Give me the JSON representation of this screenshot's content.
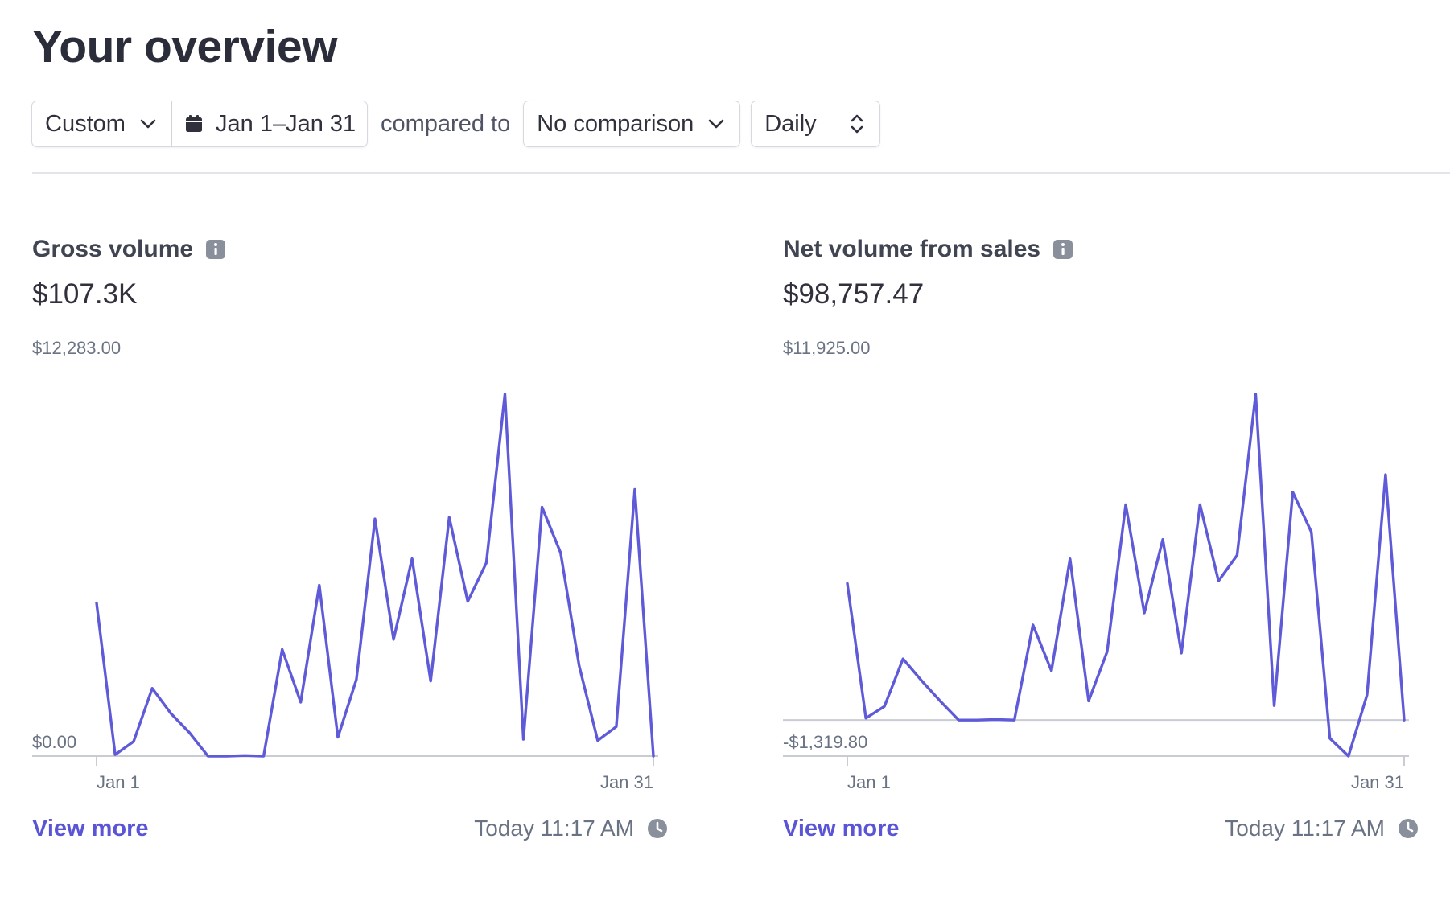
{
  "page": {
    "title": "Your overview"
  },
  "filters": {
    "range_preset": "Custom",
    "date_range": "Jan 1–Jan 31",
    "compared_to_label": "compared to",
    "comparison": "No comparison",
    "interval": "Daily"
  },
  "icons": {
    "range_chevron": "chevron-down-icon",
    "date": "calendar-icon",
    "comparison_chevron": "chevron-down-icon",
    "interval_stepper": "up-down-chevron-icon",
    "info": "info-icon",
    "timestamp": "clock-icon"
  },
  "colors": {
    "accent": "#635bff",
    "line": "#5e5ad8",
    "link": "#5a55d6",
    "axis": "#c9ccd3",
    "muted_text": "#6a7383"
  },
  "cards": [
    {
      "title": "Gross volume",
      "value": "$107.3K",
      "link_label": "View more",
      "updated": "Today 11:17 AM"
    },
    {
      "title": "Net volume from sales",
      "value": "$98,757.47",
      "link_label": "View more",
      "updated": "Today 11:17 AM"
    }
  ],
  "chart_data": [
    {
      "type": "line",
      "y_top_label": "$12,283.00",
      "y_bottom_label": "$0.00",
      "x_start_label": "Jan 1",
      "x_end_label": "Jan 31",
      "ylim": [
        0,
        12283
      ],
      "zero_line": false,
      "x": [
        1,
        2,
        3,
        4,
        5,
        6,
        7,
        8,
        9,
        10,
        11,
        12,
        13,
        14,
        15,
        16,
        17,
        18,
        19,
        20,
        21,
        22,
        23,
        24,
        25,
        26,
        27,
        28,
        29,
        30,
        31
      ],
      "values": [
        5200,
        50,
        500,
        2300,
        1450,
        800,
        0,
        0,
        20,
        0,
        3620,
        1830,
        5800,
        640,
        2600,
        8050,
        3960,
        6700,
        2550,
        8100,
        5250,
        6560,
        12283,
        570,
        8450,
        6900,
        3070,
        530,
        1000,
        9050,
        0
      ]
    },
    {
      "type": "line",
      "y_top_label": "$11,925.00",
      "y_bottom_label": "-$1,319.80",
      "x_start_label": "Jan 1",
      "x_end_label": "Jan 31",
      "ylim": [
        -1319.8,
        11925
      ],
      "zero_line": true,
      "x": [
        1,
        2,
        3,
        4,
        5,
        6,
        7,
        8,
        9,
        10,
        11,
        12,
        13,
        14,
        15,
        16,
        17,
        18,
        19,
        20,
        21,
        22,
        23,
        24,
        25,
        26,
        27,
        28,
        29,
        30,
        31
      ],
      "values": [
        5000,
        70,
        500,
        2240,
        1440,
        700,
        0,
        0,
        20,
        0,
        3480,
        1800,
        5900,
        700,
        2500,
        7880,
        3920,
        6610,
        2450,
        7880,
        5090,
        6030,
        11925,
        530,
        8340,
        6880,
        -670,
        -1319.8,
        920,
        8980,
        0
      ]
    }
  ]
}
